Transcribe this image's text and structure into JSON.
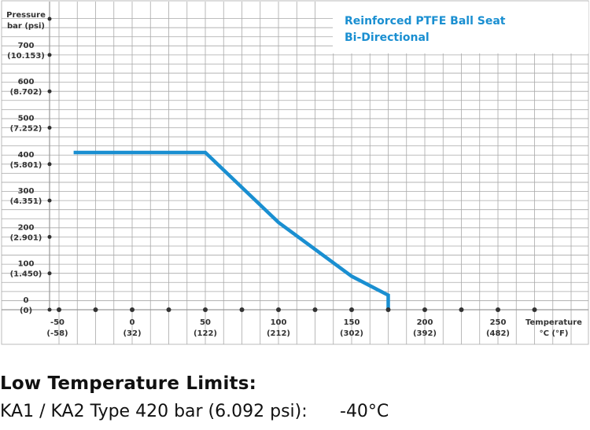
{
  "chart_data": {
    "type": "line",
    "legend_lines": [
      "Reinforced PTFE Ball Seat",
      "Bi-Directional"
    ],
    "legend_position": "top-right",
    "xlabel_lines": [
      "Temperature",
      "°C (°F)"
    ],
    "ylabel_lines": [
      "Pressure",
      "bar (psi)"
    ],
    "x_ticks": [
      {
        "value": -50,
        "line1": "-50",
        "line2": "(-58)"
      },
      {
        "value": 0,
        "line1": "0",
        "line2": "(32)"
      },
      {
        "value": 50,
        "line1": "50",
        "line2": "(122)"
      },
      {
        "value": 100,
        "line1": "100",
        "line2": "(212)"
      },
      {
        "value": 150,
        "line1": "150",
        "line2": "(302)"
      },
      {
        "value": 200,
        "line1": "200",
        "line2": "(392)"
      },
      {
        "value": 250,
        "line1": "250",
        "line2": "(482)"
      }
    ],
    "y_ticks": [
      {
        "value": 0,
        "line1": "0",
        "line2": "(0)"
      },
      {
        "value": 100,
        "line1": "100",
        "line2": "(1.450)"
      },
      {
        "value": 200,
        "line1": "200",
        "line2": "(2.901)"
      },
      {
        "value": 300,
        "line1": "300",
        "line2": "(4.351)"
      },
      {
        "value": 400,
        "line1": "400",
        "line2": "(5.801)"
      },
      {
        "value": 500,
        "line1": "500",
        "line2": "(7.252)"
      },
      {
        "value": 600,
        "line1": "600",
        "line2": "(8.702)"
      },
      {
        "value": 700,
        "line1": "700",
        "line2": "(10.153)"
      }
    ],
    "xlim": [
      -50,
      300
    ],
    "ylim": [
      0,
      800
    ],
    "grid": true,
    "series": [
      {
        "color": "#1a8fd1",
        "x": [
          -40,
          50,
          100,
          150,
          175,
          175
        ],
        "y": [
          432,
          432,
          240,
          92,
          40,
          0
        ]
      }
    ]
  },
  "footer": {
    "heading": "Low Temperature Limits:",
    "row_label": "KA1 / KA2 Type 420 bar (6.092 psi):",
    "row_value": "-40°C"
  },
  "colors": {
    "grid": "#a9a9a9",
    "axis": "#9a9a9a",
    "series": "#1a8fd1",
    "legend_text": "#1a8fd1",
    "dot": "#333333"
  }
}
